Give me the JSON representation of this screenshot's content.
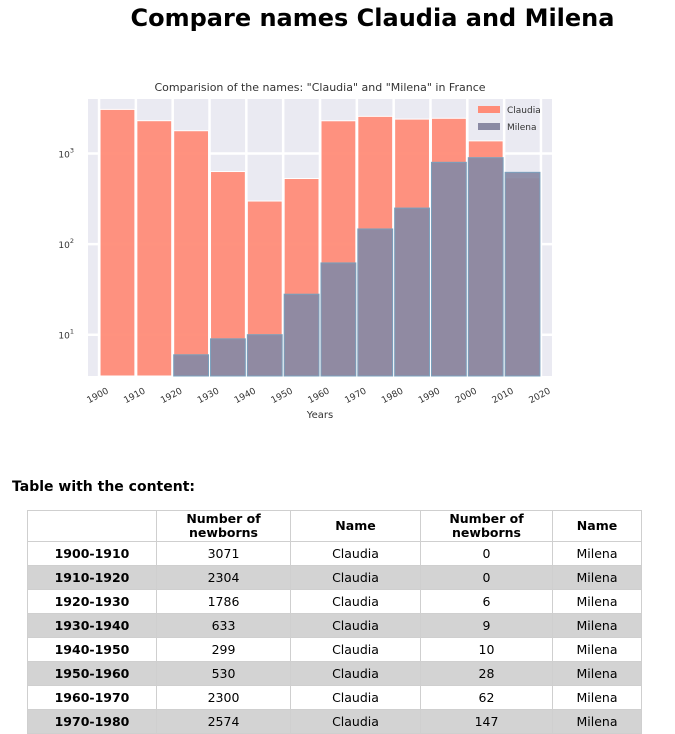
{
  "page": {
    "title": "Compare names Claudia and Milena",
    "table_heading": "Table with the content:"
  },
  "colors": {
    "plot_bg": "#eaeaf2",
    "claudia": "#ff8c78",
    "milena": "#8a8aa4",
    "milena_edge": "#7aa0bd"
  },
  "chart_data": {
    "type": "bar",
    "title": "Comparision of the names: \"Claudia\" and \"Milena\" in France",
    "xlabel": "Years",
    "ylabel": "",
    "yscale": "log",
    "ylim": [
      3.5,
      4000
    ],
    "xlim": [
      1897,
      2023
    ],
    "grid": true,
    "legend": "top-right",
    "x_ticks": [
      "1900",
      "1910",
      "1920",
      "1930",
      "1940",
      "1950",
      "1960",
      "1970",
      "1980",
      "1990",
      "2000",
      "2010",
      "2020"
    ],
    "y_ticks": [
      {
        "value": 10,
        "base": "10",
        "exp": "1"
      },
      {
        "value": 100,
        "base": "10",
        "exp": "2"
      },
      {
        "value": 1000,
        "base": "10",
        "exp": "3"
      }
    ],
    "bin_starts": [
      1900,
      1910,
      1920,
      1930,
      1940,
      1950,
      1960,
      1970,
      1980,
      1990,
      2000,
      2010
    ],
    "series": [
      {
        "name": "Claudia",
        "values": [
          3071,
          2304,
          1786,
          633,
          299,
          530,
          2300,
          2574,
          2400,
          2450,
          1380,
          540
        ]
      },
      {
        "name": "Milena",
        "values": [
          0,
          0,
          6,
          9,
          10,
          28,
          62,
          147,
          250,
          800,
          900,
          620
        ]
      }
    ]
  },
  "table": {
    "headers": [
      "",
      "Number of newborns",
      "Name",
      "Number of newborns",
      "Name"
    ],
    "rows": [
      {
        "range": "1900-1910",
        "n1": "3071",
        "name1": "Claudia",
        "n2": "0",
        "name2": "Milena"
      },
      {
        "range": "1910-1920",
        "n1": "2304",
        "name1": "Claudia",
        "n2": "0",
        "name2": "Milena"
      },
      {
        "range": "1920-1930",
        "n1": "1786",
        "name1": "Claudia",
        "n2": "6",
        "name2": "Milena"
      },
      {
        "range": "1930-1940",
        "n1": "633",
        "name1": "Claudia",
        "n2": "9",
        "name2": "Milena"
      },
      {
        "range": "1940-1950",
        "n1": "299",
        "name1": "Claudia",
        "n2": "10",
        "name2": "Milena"
      },
      {
        "range": "1950-1960",
        "n1": "530",
        "name1": "Claudia",
        "n2": "28",
        "name2": "Milena"
      },
      {
        "range": "1960-1970",
        "n1": "2300",
        "name1": "Claudia",
        "n2": "62",
        "name2": "Milena"
      },
      {
        "range": "1970-1980",
        "n1": "2574",
        "name1": "Claudia",
        "n2": "147",
        "name2": "Milena"
      }
    ]
  }
}
